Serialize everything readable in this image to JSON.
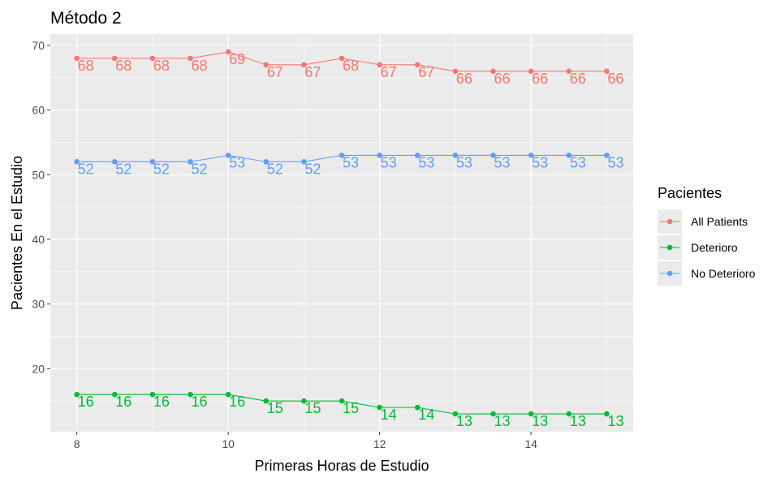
{
  "chart_data": {
    "type": "line",
    "title": "Método 2",
    "xlabel": "Primeras Horas de Estudio",
    "ylabel": "Pacientes En el Estudio",
    "x": [
      8,
      8.5,
      9,
      9.5,
      10,
      10.5,
      11,
      11.5,
      12,
      12.5,
      13,
      13.5,
      14,
      14.5,
      15
    ],
    "xlim": [
      7.65,
      15.35
    ],
    "ylim": [
      10.25,
      71.75
    ],
    "xticks": [
      8,
      10,
      12,
      14
    ],
    "yticks": [
      20,
      30,
      40,
      50,
      60,
      70
    ],
    "grid": true,
    "legend": {
      "title": "Pacientes",
      "placement": "right"
    },
    "series": [
      {
        "name": "All Patients",
        "color": "#f8766d",
        "values": [
          68,
          68,
          68,
          68,
          69,
          67,
          67,
          68,
          67,
          67,
          66,
          66,
          66,
          66,
          66
        ]
      },
      {
        "name": "Deterioro",
        "color": "#00ba38",
        "values": [
          16,
          16,
          16,
          16,
          16,
          15,
          15,
          15,
          14,
          14,
          13,
          13,
          13,
          13,
          13
        ]
      },
      {
        "name": "No Deterioro",
        "color": "#619cff",
        "values": [
          52,
          52,
          52,
          52,
          53,
          52,
          52,
          53,
          53,
          53,
          53,
          53,
          53,
          53,
          53
        ]
      }
    ]
  }
}
